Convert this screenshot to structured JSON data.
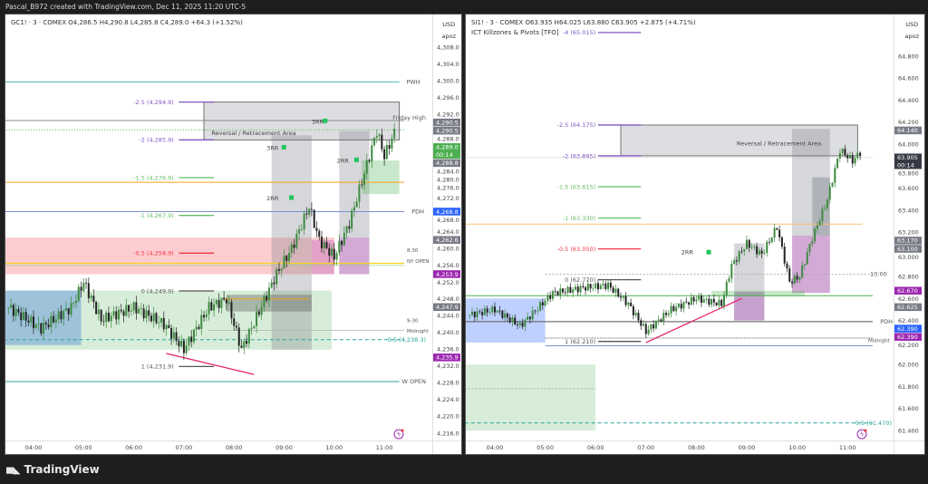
{
  "header": {
    "credit": "Pascal_B972 created with TradingView.com, Dec 11, 2025 11:20 UTC-5"
  },
  "footer": {
    "brand": "TradingView"
  },
  "left_chart": {
    "legend": "GC1! · 3 · COMEX  O4,286.5  H4,290.8  L4,285.8  C4,289.0  +64.3 (+1.52%)",
    "currency": "USD",
    "unit": "apoz",
    "price_ticks": [
      "4,308.0",
      "4,304.0",
      "4,300.0",
      "4,296.0",
      "4,292.0",
      "4,288.0",
      "4,284.0",
      "4,280.0",
      "4,276.0",
      "4,272.0",
      "4,268.0",
      "4,264.0",
      "4,260.0",
      "4,256.0",
      "4,252.0",
      "4,248.0",
      "4,244.0",
      "4,240.0",
      "4,236.0",
      "4,232.0",
      "4,228.0",
      "4,224.0",
      "4,220.0",
      "4,216.0"
    ],
    "time_ticks": [
      "04:00",
      "05:00",
      "06:00",
      "07:00",
      "08:00",
      "09:00",
      "10:00",
      "11:00"
    ],
    "price_tags": [
      {
        "text": "4,290.5",
        "price": 4291.9,
        "color": "#787b86"
      },
      {
        "text": "4,290.5",
        "price": 4290.1,
        "color": "#787b86"
      },
      {
        "text": "4,289.0",
        "sub": "00:14",
        "price": 4288.3,
        "color": "#4caf50"
      },
      {
        "text": "4,288.8",
        "price": 4285.6,
        "color": "#787b86"
      },
      {
        "text": "4,268.8",
        "price": 4268.8,
        "color": "#2962ff"
      },
      {
        "text": "4,262.6",
        "price": 4262.6,
        "color": "#787b86"
      },
      {
        "text": "4,253.9",
        "price": 4253.9,
        "color": "#9c27b0"
      },
      {
        "text": "4,247.9",
        "price": 4247.9,
        "color": "#787b86"
      },
      {
        "text": "4,235.9",
        "price": 4235.9,
        "color": "#9c27b0"
      }
    ],
    "fib_levels": [
      {
        "label": "-2.5 (4,294.9)",
        "price": 4294.9,
        "color": "#7e57c2"
      },
      {
        "label": "-2 (4,285.9)",
        "price": 4285.9,
        "color": "#7e57c2"
      },
      {
        "label": "-1.5 (4,276.9)",
        "price": 4276.9,
        "color": "#66bb6a"
      },
      {
        "label": "-1 (4,267.9)",
        "price": 4267.9,
        "color": "#66bb6a"
      },
      {
        "label": "-0.5 (4,258.9)",
        "price": 4258.9,
        "color": "#f23645"
      },
      {
        "label": "0 (4,249.9)",
        "price": 4249.9,
        "color": "#555555"
      },
      {
        "label": "1 (4,231.9)",
        "price": 4231.9,
        "color": "#555555"
      }
    ],
    "levels": [
      {
        "label": "PWH",
        "price": 4299.7,
        "color": "#4db6ac"
      },
      {
        "label": "Friday High",
        "price": 4290.5,
        "color": "#787b86"
      },
      {
        "label": "PDH",
        "price": 4268.8,
        "color": "#7b8fd6"
      },
      {
        "label": "W OPEN",
        "price": 4228.3,
        "color": "#26a69a"
      },
      {
        "label": "0.5 (4,238.3)",
        "price": 4238.3,
        "color": "#26a69a"
      }
    ],
    "small_labels": {
      "zone": "Reversal / Retracement Area",
      "rr3": "3RR",
      "rr2": "2RR",
      "t830": "8:30",
      "t930": "9:30",
      "ny_open": "NY OPEN",
      "midnight": "Midnight"
    },
    "chart_data": {
      "type": "candlestick",
      "x_hours": [
        3.5,
        4.15,
        4.75,
        5.0,
        5.35,
        6.0,
        6.6,
        7.0,
        7.5,
        7.85,
        8.15,
        8.5,
        8.85,
        9.15,
        9.5,
        9.7,
        10.0,
        10.3,
        10.6,
        10.85,
        11.0,
        11.25
      ],
      "close": [
        4246,
        4241,
        4246,
        4252,
        4243,
        4246,
        4242,
        4236,
        4246,
        4248,
        4236,
        4245,
        4254,
        4260,
        4270,
        4262,
        4258,
        4266,
        4278,
        4288,
        4282,
        4289
      ]
    }
  },
  "right_chart": {
    "legend": "SI1! · 3 · COMEX  O63.935  H64.025  L63.880  C63.905  +2.875 (+4.71%)",
    "indicator": "ICT Killzones & Pivots [TFO]",
    "currency": "USD",
    "unit": "apoz",
    "price_ticks": [
      "64.800",
      "64.600",
      "64.400",
      "64.200",
      "64.000",
      "63.800",
      "63.600",
      "63.400",
      "63.200",
      "63.000",
      "62.800",
      "62.600",
      "62.400",
      "62.200",
      "62.000",
      "61.800",
      "61.600",
      "61.400"
    ],
    "time_ticks": [
      "04:00",
      "05:00",
      "06:00",
      "07:00",
      "08:00",
      "09:00",
      "10:00",
      "11:00"
    ],
    "price_tags": [
      {
        "text": "64.140",
        "price": 64.14,
        "color": "#787b86"
      },
      {
        "text": "63.905",
        "sub": "00:14",
        "price": 63.88,
        "color": "#363a45"
      },
      {
        "text": "63.170",
        "price": 63.17,
        "color": "#787b86"
      },
      {
        "text": "63.100",
        "price": 63.09,
        "color": "#787b86"
      },
      {
        "text": "62.670",
        "price": 62.67,
        "color": "#9c27b0"
      },
      {
        "text": "62.625",
        "price": 62.59,
        "color": "#787b86"
      },
      {
        "text": "62.390",
        "price": 62.39,
        "color": "#2962ff"
      },
      {
        "text": "62.390",
        "price": 62.3,
        "color": "#9c27b0"
      }
    ],
    "fib_levels": [
      {
        "label": "-4 (65.015)",
        "price": 65.015,
        "color": "#7e57c2"
      },
      {
        "label": "-2.5 (64.175)",
        "price": 64.175,
        "color": "#7e57c2"
      },
      {
        "label": "-2 (63.895)",
        "price": 63.895,
        "color": "#7e57c2"
      },
      {
        "label": "-1.5 (63.615)",
        "price": 63.615,
        "color": "#66bb6a"
      },
      {
        "label": "-1 (63.330)",
        "price": 63.33,
        "color": "#66bb6a"
      },
      {
        "label": "-0.5 (63.050)",
        "price": 63.05,
        "color": "#f23645"
      },
      {
        "label": "0 (62.770)",
        "price": 62.77,
        "color": "#555555"
      },
      {
        "label": "1 (62.210)",
        "price": 62.21,
        "color": "#555555"
      }
    ],
    "levels": [
      {
        "label": "PDH",
        "price": 62.39,
        "color": "#7b8fd6"
      },
      {
        "label": "10:00",
        "price": 62.82,
        "color": "#787b86"
      },
      {
        "label": "Midnight",
        "price": 62.22,
        "color": "#787b86"
      },
      {
        "label": "0.5 (61.470)",
        "price": 61.47,
        "color": "#26a69a"
      }
    ],
    "small_labels": {
      "zone": "Reversal / Retracement Area",
      "rr2": "2RR"
    },
    "chart_data": {
      "type": "candlestick",
      "x_hours": [
        3.5,
        4.0,
        4.5,
        5.15,
        5.8,
        6.25,
        6.65,
        7.0,
        7.5,
        8.0,
        8.5,
        8.7,
        9.0,
        9.3,
        9.6,
        9.85,
        10.05,
        10.3,
        10.6,
        10.85,
        11.1,
        11.3
      ],
      "close": [
        62.45,
        62.5,
        62.35,
        62.65,
        62.7,
        62.72,
        62.55,
        62.3,
        62.5,
        62.6,
        62.55,
        62.9,
        63.1,
        63.0,
        63.25,
        62.75,
        62.8,
        63.15,
        63.5,
        63.95,
        63.85,
        63.95
      ]
    }
  }
}
